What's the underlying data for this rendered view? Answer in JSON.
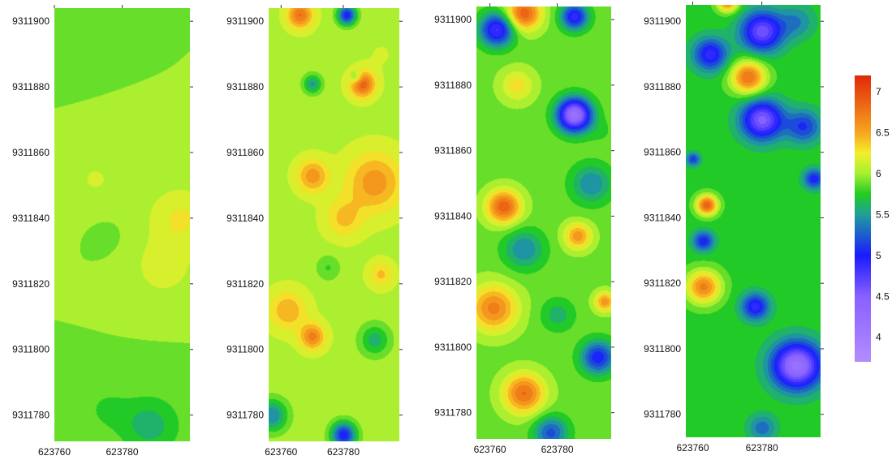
{
  "chart_data": [
    {
      "type": "heatmap",
      "x_ticks": [
        "623760",
        "623780"
      ],
      "y_ticks": [
        "9311900",
        "9311880",
        "9311860",
        "9311840",
        "9311820",
        "9311800",
        "9311780"
      ],
      "xlim": [
        623760,
        623800
      ],
      "ylim": [
        9311772,
        9311904
      ],
      "blobs": [
        {
          "x": 623788,
          "y": 9311777,
          "v": 5.6,
          "r": 9
        },
        {
          "x": 623775,
          "y": 9311782,
          "v": 5.8,
          "r": 7
        },
        {
          "x": 623797,
          "y": 9311840,
          "v": 6.25,
          "r": 10
        },
        {
          "x": 623792,
          "y": 9311825,
          "v": 6.2,
          "r": 8
        },
        {
          "x": 623772,
          "y": 9311852,
          "v": 6.1,
          "r": 9
        },
        {
          "x": 623775,
          "y": 9311835,
          "v": 5.9,
          "r": 4
        },
        {
          "x": 623760,
          "y": 9311895,
          "v": 5.85,
          "r": 8
        }
      ],
      "base": 5.95
    },
    {
      "type": "heatmap",
      "x_ticks": [
        "623760",
        "623780"
      ],
      "y_ticks": [
        "9311900",
        "9311880",
        "9311860",
        "9311840",
        "9311820",
        "9311800",
        "9311780"
      ],
      "xlim": [
        623756,
        623798
      ],
      "ylim": [
        9311772,
        9311904
      ],
      "blobs": [
        {
          "x": 623786,
          "y": 9311881,
          "v": 6.9,
          "r": 4
        },
        {
          "x": 623784,
          "y": 9311883,
          "v": 5.6,
          "r": 2
        },
        {
          "x": 623770,
          "y": 9311881,
          "v": 5.5,
          "r": 3
        },
        {
          "x": 623790,
          "y": 9311851,
          "v": 6.6,
          "r": 9
        },
        {
          "x": 623770,
          "y": 9311853,
          "v": 6.6,
          "r": 5
        },
        {
          "x": 623780,
          "y": 9311840,
          "v": 6.4,
          "r": 6
        },
        {
          "x": 623770,
          "y": 9311804,
          "v": 6.7,
          "r": 4
        },
        {
          "x": 623775,
          "y": 9311825,
          "v": 5.8,
          "r": 4
        },
        {
          "x": 623790,
          "y": 9311803,
          "v": 5.6,
          "r": 5
        },
        {
          "x": 623792,
          "y": 9311823,
          "v": 6.4,
          "r": 4
        },
        {
          "x": 623757,
          "y": 9311780,
          "v": 5.4,
          "r": 5
        },
        {
          "x": 623780,
          "y": 9311774,
          "v": 5.0,
          "r": 4
        },
        {
          "x": 623781,
          "y": 9311902,
          "v": 5.0,
          "r": 3
        },
        {
          "x": 623766,
          "y": 9311902,
          "v": 6.8,
          "r": 4
        },
        {
          "x": 623762,
          "y": 9311812,
          "v": 6.5,
          "r": 6
        },
        {
          "x": 623792,
          "y": 9311890,
          "v": 6.1,
          "r": 5
        }
      ],
      "base": 6.05
    },
    {
      "type": "heatmap",
      "x_ticks": [
        "623760",
        "623780"
      ],
      "y_ticks": [
        "9311900",
        "9311880",
        "9311860",
        "9311840",
        "9311820",
        "9311800",
        "9311780"
      ],
      "xlim": [
        623756,
        623796
      ],
      "ylim": [
        9311772,
        9311904
      ],
      "blobs": [
        {
          "x": 623785,
          "y": 9311871,
          "v": 4.2,
          "r": 5
        },
        {
          "x": 623762,
          "y": 9311897,
          "v": 4.8,
          "r": 5
        },
        {
          "x": 623785,
          "y": 9311901,
          "v": 4.9,
          "r": 4
        },
        {
          "x": 623770,
          "y": 9311902,
          "v": 6.9,
          "r": 5
        },
        {
          "x": 623764,
          "y": 9311843,
          "v": 6.9,
          "r": 5
        },
        {
          "x": 623761,
          "y": 9311812,
          "v": 6.7,
          "r": 7
        },
        {
          "x": 623786,
          "y": 9311834,
          "v": 6.6,
          "r": 4
        },
        {
          "x": 623792,
          "y": 9311797,
          "v": 5.0,
          "r": 5
        },
        {
          "x": 623770,
          "y": 9311786,
          "v": 6.8,
          "r": 6
        },
        {
          "x": 623794,
          "y": 9311814,
          "v": 6.6,
          "r": 3
        },
        {
          "x": 623770,
          "y": 9311830,
          "v": 5.4,
          "r": 6
        },
        {
          "x": 623790,
          "y": 9311850,
          "v": 5.4,
          "r": 6
        },
        {
          "x": 623780,
          "y": 9311810,
          "v": 5.6,
          "r": 5
        },
        {
          "x": 623778,
          "y": 9311774,
          "v": 5.2,
          "r": 5
        },
        {
          "x": 623768,
          "y": 9311880,
          "v": 6.3,
          "r": 5
        },
        {
          "x": 623793,
          "y": 9311866,
          "v": 5.8,
          "r": 4
        }
      ],
      "base": 5.9
    },
    {
      "type": "heatmap",
      "x_ticks": [
        "623760",
        "623780"
      ],
      "y_ticks": [
        "9311900",
        "9311880",
        "9311860",
        "9311840",
        "9311820",
        "9311800",
        "9311780"
      ],
      "xlim": [
        623758,
        623797
      ],
      "ylim": [
        9311773,
        9311905
      ],
      "blobs": [
        {
          "x": 623780,
          "y": 9311897,
          "v": 4.6,
          "r": 6
        },
        {
          "x": 623765,
          "y": 9311890,
          "v": 4.9,
          "r": 5
        },
        {
          "x": 623790,
          "y": 9311900,
          "v": 5.4,
          "r": 5
        },
        {
          "x": 623780,
          "y": 9311870,
          "v": 4.5,
          "r": 6
        },
        {
          "x": 623792,
          "y": 9311868,
          "v": 5.1,
          "r": 5
        },
        {
          "x": 623776,
          "y": 9311883,
          "v": 6.8,
          "r": 5
        },
        {
          "x": 623764,
          "y": 9311844,
          "v": 6.9,
          "r": 3
        },
        {
          "x": 623763,
          "y": 9311833,
          "v": 5.0,
          "r": 3
        },
        {
          "x": 623763,
          "y": 9311819,
          "v": 6.7,
          "r": 5
        },
        {
          "x": 623778,
          "y": 9311813,
          "v": 4.9,
          "r": 4
        },
        {
          "x": 623790,
          "y": 9311795,
          "v": 4.2,
          "r": 7
        },
        {
          "x": 623795,
          "y": 9311852,
          "v": 5.0,
          "r": 3
        },
        {
          "x": 623760,
          "y": 9311858,
          "v": 5.1,
          "r": 2
        },
        {
          "x": 623780,
          "y": 9311776,
          "v": 5.3,
          "r": 4
        },
        {
          "x": 623770,
          "y": 9311906,
          "v": 6.7,
          "r": 3
        }
      ],
      "base": 5.75
    }
  ],
  "colorbar": {
    "ticks": [
      "7",
      "6.5",
      "6",
      "5.5",
      "5",
      "4.5",
      "4"
    ],
    "range": [
      3.7,
      7.2
    ],
    "stops": [
      {
        "v": 3.7,
        "c": "#b48cff"
      },
      {
        "v": 4.5,
        "c": "#8860ff"
      },
      {
        "v": 5.0,
        "c": "#1a1aff"
      },
      {
        "v": 5.5,
        "c": "#1f9f9a"
      },
      {
        "v": 5.75,
        "c": "#22cc22"
      },
      {
        "v": 6.0,
        "c": "#a6ef30"
      },
      {
        "v": 6.25,
        "c": "#f2ef2a"
      },
      {
        "v": 6.5,
        "c": "#f7a51f"
      },
      {
        "v": 7.2,
        "c": "#e0280a"
      }
    ]
  }
}
